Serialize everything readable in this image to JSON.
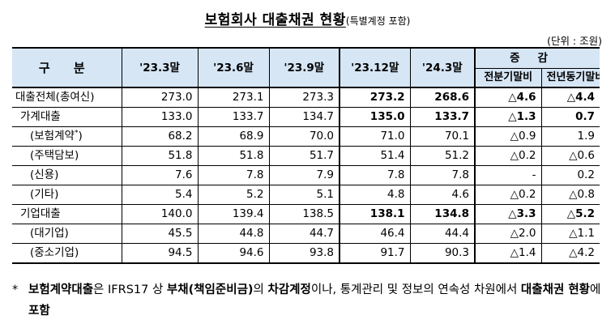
{
  "title": {
    "main": "보험회사 대출채권 현황",
    "sub": "(특별계정 포함)"
  },
  "unit": "(단위 : 조원)",
  "table": {
    "header_gubun": "구 분",
    "periods": [
      "'23.3말",
      "'23.6말",
      "'23.9말",
      "'23.12말",
      "'24.3말"
    ],
    "change_header": "증감",
    "change_sub": [
      "전분기말비",
      "전년동기말비"
    ],
    "rows": [
      {
        "label": "대출전체(총여신)",
        "values": [
          "273.0",
          "273.1",
          "273.3",
          "273.2",
          "268.6",
          "△4.6",
          "△4.4"
        ]
      },
      {
        "label": "가계대출",
        "values": [
          "133.0",
          "133.7",
          "134.7",
          "135.0",
          "133.7",
          "△1.3",
          "0.7"
        ]
      },
      {
        "label": "(보험계약",
        "sup": "*",
        "label_end": ")",
        "values": [
          "68.2",
          "68.9",
          "70.0",
          "71.0",
          "70.1",
          "△0.9",
          "1.9"
        ]
      },
      {
        "label": "(주택담보)",
        "values": [
          "51.8",
          "51.8",
          "51.7",
          "51.4",
          "51.2",
          "△0.2",
          "△0.6"
        ]
      },
      {
        "label": "(신용)",
        "values": [
          "7.6",
          "7.8",
          "7.9",
          "7.8",
          "7.8",
          "-",
          "0.2"
        ]
      },
      {
        "label": "(기타)",
        "values": [
          "5.4",
          "5.2",
          "5.1",
          "4.8",
          "4.6",
          "△0.2",
          "△0.8"
        ]
      },
      {
        "label": "기업대출",
        "values": [
          "140.0",
          "139.4",
          "138.5",
          "138.1",
          "134.8",
          "△3.3",
          "△5.2"
        ]
      },
      {
        "label": "(대기업)",
        "values": [
          "45.5",
          "44.8",
          "44.7",
          "46.4",
          "44.4",
          "△2.0",
          "△1.1"
        ]
      },
      {
        "label": "(중소기업)",
        "values": [
          "94.5",
          "94.6",
          "93.8",
          "91.7",
          "90.3",
          "△1.4",
          "△4.2"
        ]
      }
    ]
  },
  "note": {
    "asterisk": "*",
    "p1": "보험계약대출",
    "p2": "은 IFRS17 상 ",
    "p3": "부채(책임준비금)",
    "p4": "의 ",
    "p5": "차감계정",
    "p6": "이나, 통계관리 및 정보의 연속성 차원에서 ",
    "p7": "대출채권 현황",
    "p8": "에 ",
    "p9": "포함"
  }
}
